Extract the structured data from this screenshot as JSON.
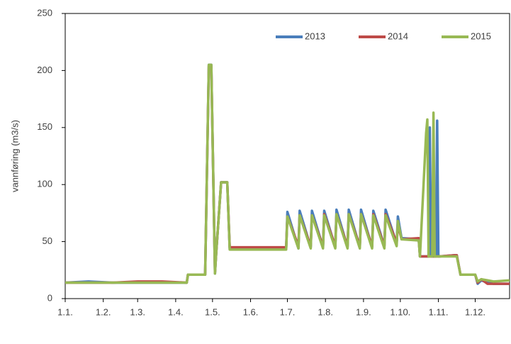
{
  "chart_data": {
    "type": "line",
    "ylabel": "vannføring (m3/s)",
    "x": [
      1,
      20,
      40,
      60,
      80,
      100,
      101,
      113,
      115,
      118,
      120,
      123,
      124,
      128,
      133,
      135,
      150,
      165,
      181,
      182,
      191,
      192,
      201,
      202,
      211,
      212,
      221,
      222,
      231,
      232,
      241,
      242,
      251,
      252,
      261,
      262,
      271,
      272,
      275,
      289,
      290,
      295,
      296,
      297,
      298,
      299,
      300,
      301,
      302,
      303,
      304,
      305,
      306,
      318,
      320,
      323,
      335,
      337,
      340,
      345,
      350,
      363
    ],
    "series": [
      {
        "name": "2013",
        "color": "#4a7ebb",
        "values": [
          14,
          15,
          14,
          14,
          14,
          14,
          21,
          21,
          21,
          205,
          205,
          22,
          40,
          102,
          102,
          44,
          44,
          44,
          44,
          76,
          44,
          77,
          45,
          77,
          45,
          77,
          45,
          78,
          45,
          78,
          45,
          78,
          45,
          77,
          46,
          78,
          48,
          72,
          53,
          52,
          37,
          37,
          37,
          37,
          150,
          37,
          37,
          37,
          37,
          37,
          156,
          37,
          37,
          38,
          38,
          21,
          21,
          13,
          16,
          14,
          13,
          13
        ]
      },
      {
        "name": "2014",
        "color": "#be4b48",
        "values": [
          14,
          14,
          14,
          15,
          15,
          14,
          21,
          21,
          21,
          204,
          204,
          23,
          40,
          102,
          102,
          45,
          45,
          45,
          45,
          72,
          46,
          73,
          46,
          73,
          46,
          74,
          46,
          74,
          46,
          74,
          46,
          74,
          46,
          74,
          46,
          74,
          49,
          65,
          52,
          53,
          37,
          37,
          37,
          37,
          37,
          37,
          37,
          37,
          37,
          37,
          37,
          37,
          37,
          38,
          38,
          21,
          21,
          14,
          17,
          13,
          13,
          13
        ]
      },
      {
        "name": "2015",
        "color": "#98b954",
        "values": [
          14,
          14,
          14,
          14,
          14,
          14,
          21,
          21,
          21,
          205,
          205,
          22,
          40,
          102,
          102,
          43,
          43,
          43,
          43,
          72,
          44,
          73,
          44,
          73,
          44,
          73,
          44,
          74,
          44,
          74,
          44,
          74,
          44,
          73,
          44,
          73,
          46,
          68,
          52,
          51,
          37,
          145,
          157,
          37,
          37,
          37,
          37,
          163,
          37,
          37,
          37,
          37,
          37,
          37,
          37,
          21,
          21,
          15,
          17,
          16,
          15,
          16
        ]
      }
    ],
    "xlim": [
      1,
      363
    ],
    "xticks": [
      {
        "value": 1,
        "label": "1.1."
      },
      {
        "value": 32,
        "label": "1.2."
      },
      {
        "value": 60,
        "label": "1.3."
      },
      {
        "value": 91,
        "label": "1.4."
      },
      {
        "value": 121,
        "label": "1.5."
      },
      {
        "value": 152,
        "label": "1.6."
      },
      {
        "value": 182,
        "label": "1.7."
      },
      {
        "value": 213,
        "label": "1.8."
      },
      {
        "value": 244,
        "label": "1.9."
      },
      {
        "value": 274,
        "label": "1.10."
      },
      {
        "value": 305,
        "label": "1.11."
      },
      {
        "value": 335,
        "label": "1.12."
      }
    ],
    "ylim": [
      0,
      250
    ],
    "yticks": [
      0,
      50,
      100,
      150,
      200,
      250
    ],
    "legend": "top-right"
  }
}
